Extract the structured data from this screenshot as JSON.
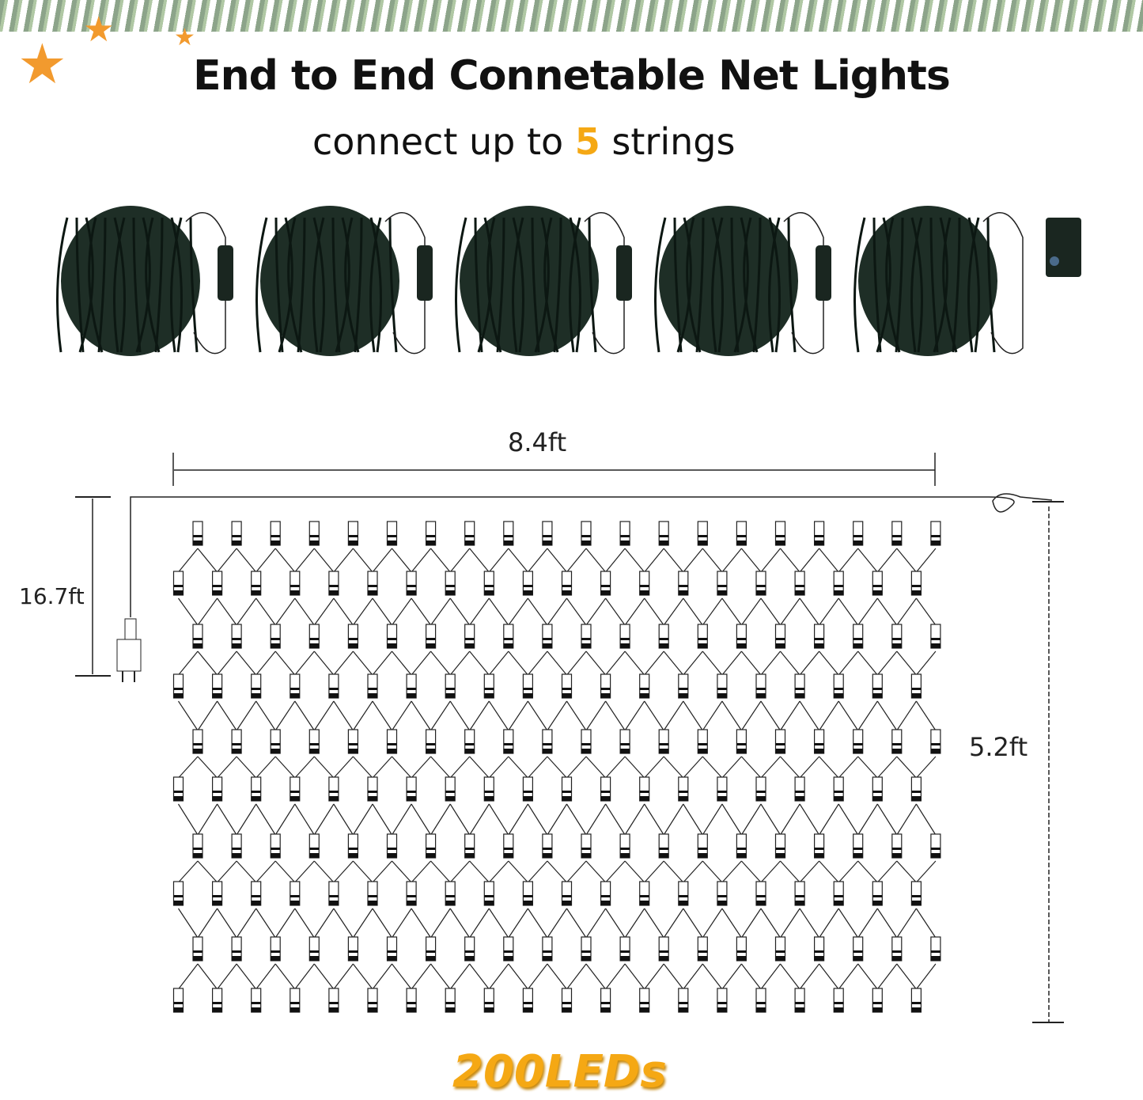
{
  "title": "End to End Connetable Net Lights",
  "subtitle": {
    "prefix": "connect up to",
    "number": "5",
    "suffix": "strings"
  },
  "strings_shown": 5,
  "dimensions": {
    "width": "8.4ft",
    "height": "5.2ft",
    "lead_wire": "16.7ft"
  },
  "led_count_label": "200LEDs",
  "net": {
    "rows": 10,
    "columns": 20
  },
  "colors": {
    "accent": "#f5a814",
    "wire": "#1e2e26",
    "line": "#222222"
  }
}
